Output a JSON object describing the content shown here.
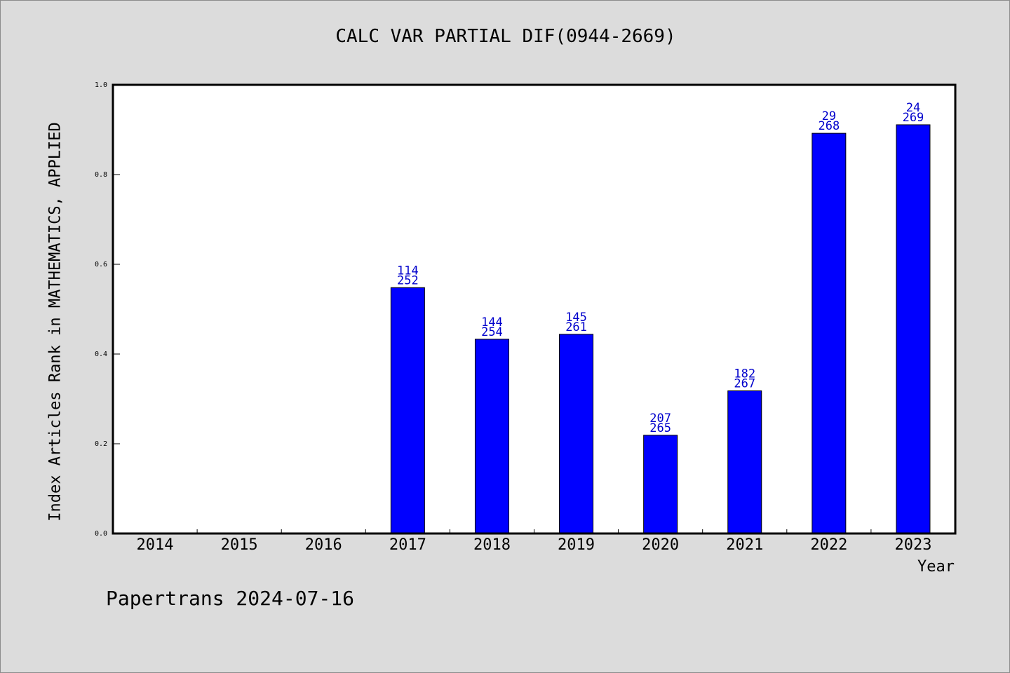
{
  "chart_data": {
    "type": "bar",
    "title": "CALC VAR PARTIAL DIF(0944-2669)",
    "xlabel": "Year",
    "ylabel": "Index Articles Rank in MATHEMATICS, APPLIED",
    "ylim": [
      0,
      1
    ],
    "yticks": [
      "0.0",
      "0.2",
      "0.4",
      "0.6",
      "0.8",
      "1.0"
    ],
    "categories": [
      "2014",
      "2015",
      "2016",
      "2017",
      "2018",
      "2019",
      "2020",
      "2021",
      "2022",
      "2023"
    ],
    "values": [
      null,
      null,
      null,
      0.548,
      0.433,
      0.444,
      0.219,
      0.318,
      0.892,
      0.911
    ],
    "rank_labels": [
      null,
      null,
      null,
      "114",
      "144",
      "145",
      "207",
      "182",
      "29",
      "24"
    ],
    "total_labels": [
      null,
      null,
      null,
      "252",
      "254",
      "261",
      "265",
      "267",
      "268",
      "269"
    ],
    "bar_color": "#0000ff",
    "label_color": "#0000cc",
    "grid": false
  },
  "footer": "Papertrans 2024-07-16"
}
